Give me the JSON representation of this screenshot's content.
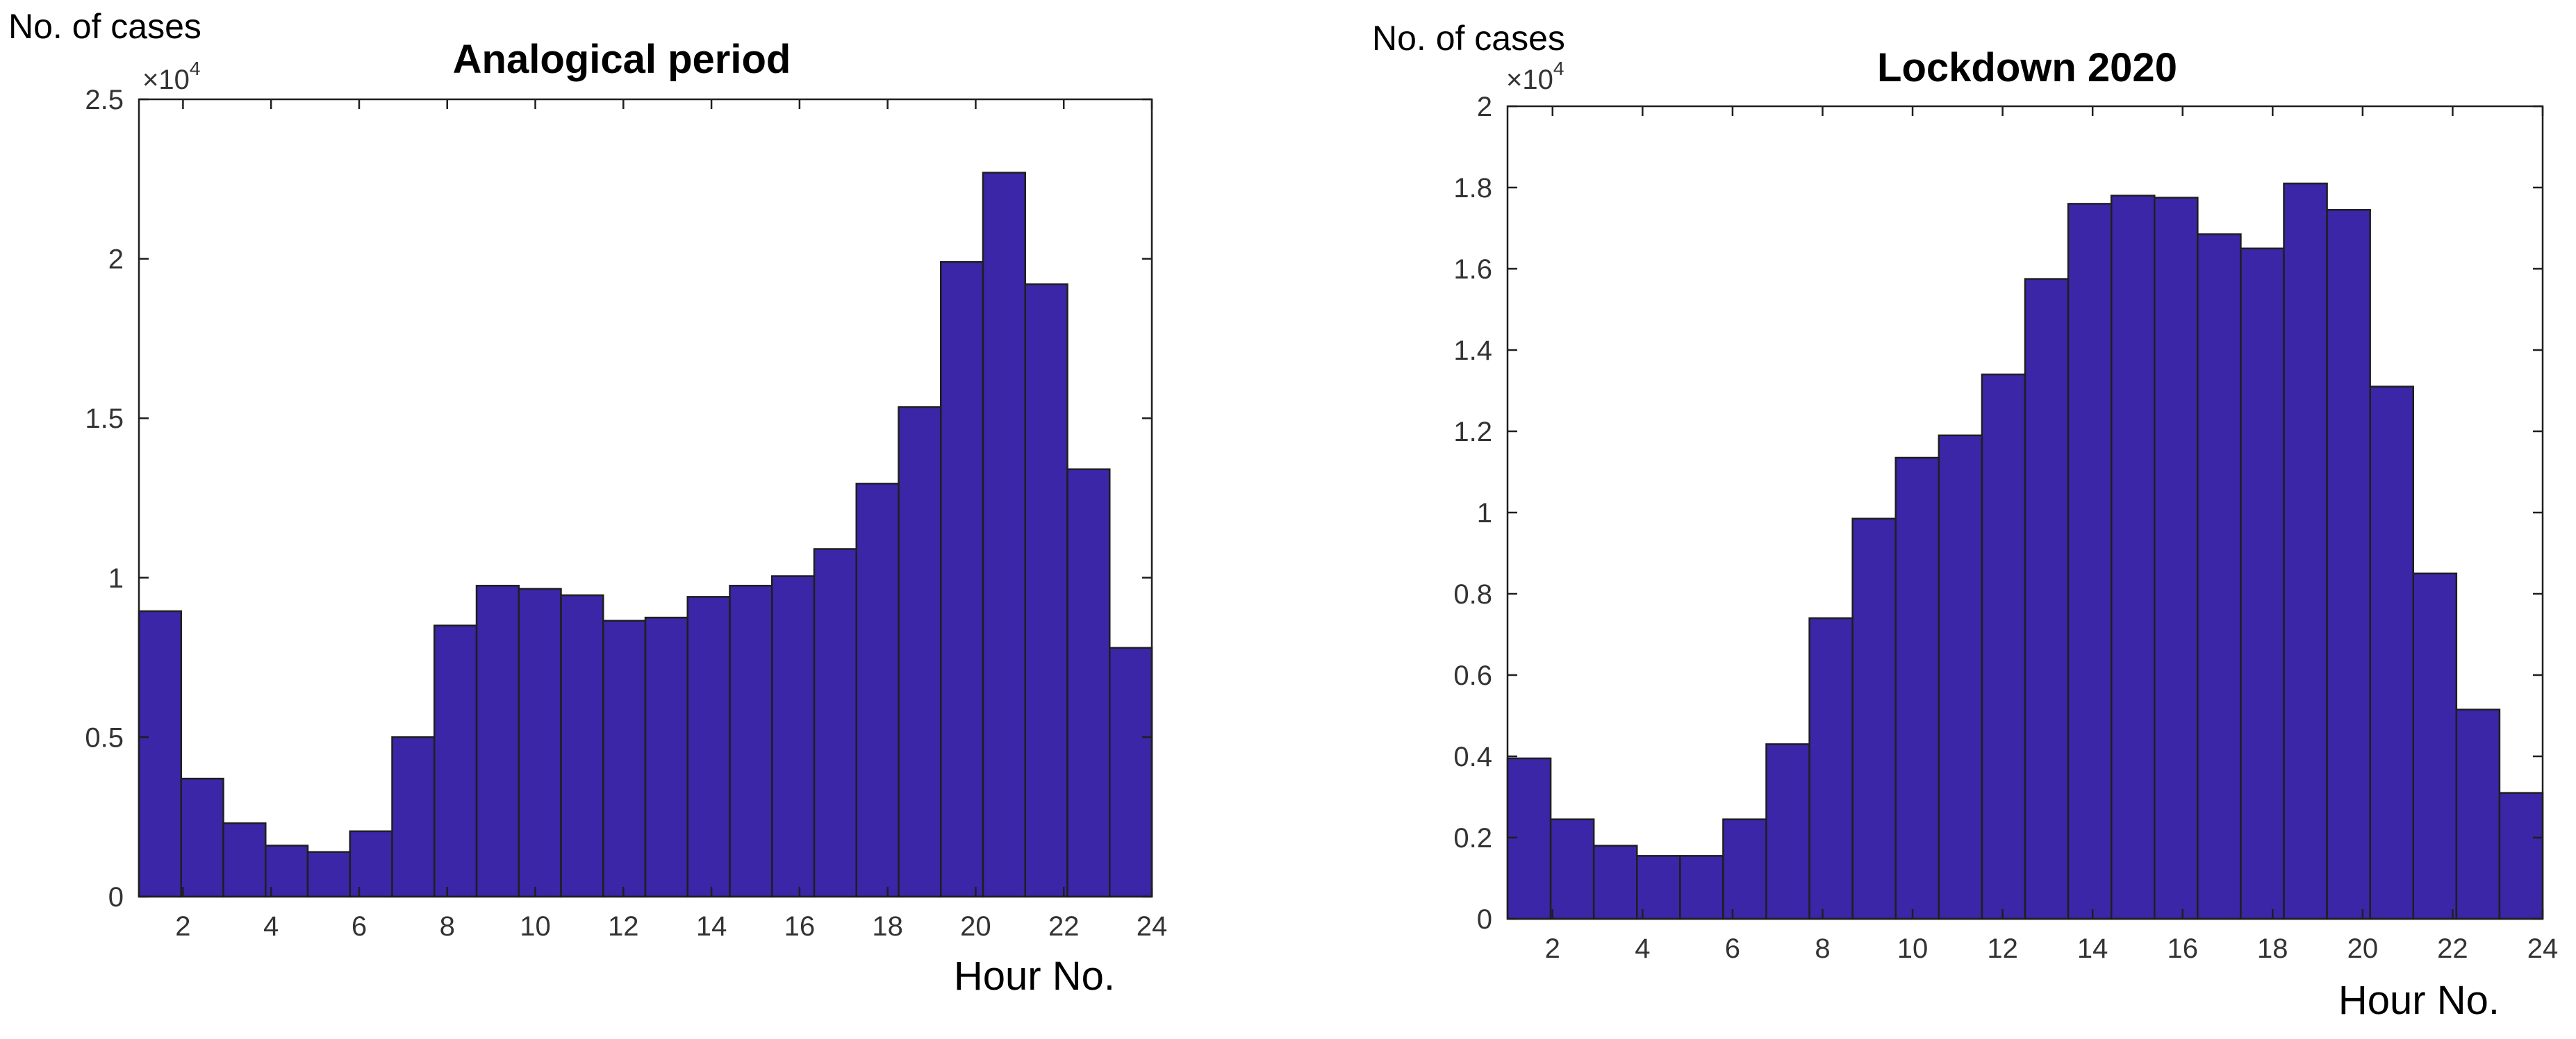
{
  "chart_data": [
    {
      "type": "bar",
      "title": "Analogical period",
      "ylabel": "No. of cases",
      "xlabel": "Hour  No.",
      "y_multiplier": "×10",
      "y_multiplier_exp": "4",
      "xlim": [
        1,
        24
      ],
      "ylim": [
        0,
        2.5
      ],
      "xticks": [
        2,
        4,
        6,
        8,
        10,
        12,
        14,
        16,
        18,
        20,
        22,
        24
      ],
      "yticks": [
        0,
        0.5,
        1,
        1.5,
        2,
        2.5
      ],
      "ytick_labels": [
        "0",
        "0.5",
        "1",
        "1.5",
        "2",
        "2.5"
      ],
      "bin_edges": [
        1,
        1.9583,
        2.9167,
        3.875,
        4.8333,
        5.7917,
        6.75,
        7.7083,
        8.6667,
        9.625,
        10.5833,
        11.5417,
        12.5,
        13.4583,
        14.4167,
        15.375,
        16.3333,
        17.2917,
        18.25,
        19.2083,
        20.1667,
        21.125,
        22.0833,
        23.0417,
        24
      ],
      "values": [
        0.895,
        0.37,
        0.23,
        0.16,
        0.14,
        0.205,
        0.5,
        0.85,
        0.975,
        0.965,
        0.945,
        0.865,
        0.875,
        0.94,
        0.975,
        1.005,
        1.09,
        1.295,
        1.535,
        1.99,
        2.27,
        1.92,
        1.34,
        0.78
      ],
      "color": "#3a26a6"
    },
    {
      "type": "bar",
      "title": "Lockdown 2020",
      "ylabel": "No. of cases",
      "xlabel": "Hour  No.",
      "y_multiplier": "×10",
      "y_multiplier_exp": "4",
      "xlim": [
        1,
        24
      ],
      "ylim": [
        0,
        2
      ],
      "xticks": [
        2,
        4,
        6,
        8,
        10,
        12,
        14,
        16,
        18,
        20,
        22,
        24
      ],
      "yticks": [
        0,
        0.2,
        0.4,
        0.6,
        0.8,
        1,
        1.2,
        1.4,
        1.6,
        1.8,
        2
      ],
      "ytick_labels": [
        "0",
        "0.2",
        "0.4",
        "0.6",
        "0.8",
        "1",
        "1.2",
        "1.4",
        "1.6",
        "1.8",
        "2"
      ],
      "bin_edges": [
        1,
        1.9583,
        2.9167,
        3.875,
        4.8333,
        5.7917,
        6.75,
        7.7083,
        8.6667,
        9.625,
        10.5833,
        11.5417,
        12.5,
        13.4583,
        14.4167,
        15.375,
        16.3333,
        17.2917,
        18.25,
        19.2083,
        20.1667,
        21.125,
        22.0833,
        23.0417,
        24
      ],
      "values": [
        0.395,
        0.245,
        0.18,
        0.155,
        0.155,
        0.245,
        0.43,
        0.74,
        0.985,
        1.135,
        1.19,
        1.34,
        1.575,
        1.76,
        1.78,
        1.775,
        1.685,
        1.65,
        1.81,
        1.745,
        1.31,
        0.85,
        0.515,
        0.31
      ],
      "color": "#3a26a6"
    }
  ]
}
